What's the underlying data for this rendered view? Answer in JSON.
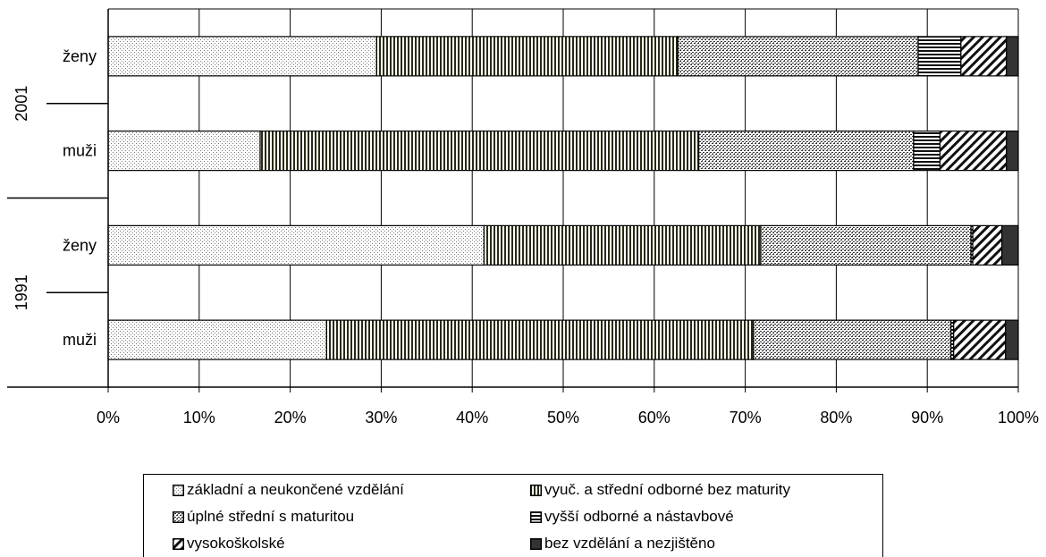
{
  "chart_data": {
    "type": "bar",
    "orientation": "horizontal",
    "stacked": "percent",
    "groups": [
      {
        "label": "2001",
        "categories": [
          "ženy",
          "muži"
        ]
      },
      {
        "label": "1991",
        "categories": [
          "ženy",
          "muži"
        ]
      }
    ],
    "rows": [
      "2001 ženy",
      "2001 muži",
      "1991 ženy",
      "1991 muži"
    ],
    "series": [
      {
        "name": "základní a neukončené vzdělání",
        "pattern": "dots",
        "values": [
          29.5,
          16.7,
          41.3,
          24.0
        ]
      },
      {
        "name": "vyuč. a střední odborné bez maturity",
        "pattern": "vertical-stripes",
        "values": [
          33.1,
          48.2,
          30.4,
          46.9
        ]
      },
      {
        "name": "úplné střední s maturitou",
        "pattern": "dense-dots",
        "values": [
          26.4,
          23.6,
          23.1,
          21.7
        ]
      },
      {
        "name": "vyšší odborné a nástavbové",
        "pattern": "horizontal-stripes",
        "values": [
          4.7,
          2.9,
          0.2,
          0.3
        ]
      },
      {
        "name": "vysokoškolské",
        "pattern": "diagonal",
        "values": [
          5.0,
          7.3,
          3.2,
          5.7
        ]
      },
      {
        "name": "bez vzdělání a nezjištěno",
        "pattern": "solid-dark",
        "values": [
          1.3,
          1.3,
          1.8,
          1.4
        ]
      }
    ],
    "xticks": [
      "0%",
      "10%",
      "20%",
      "30%",
      "40%",
      "50%",
      "60%",
      "70%",
      "80%",
      "90%",
      "100%"
    ],
    "xlim": [
      0,
      100
    ],
    "grid": true,
    "legend_position": "bottom"
  }
}
